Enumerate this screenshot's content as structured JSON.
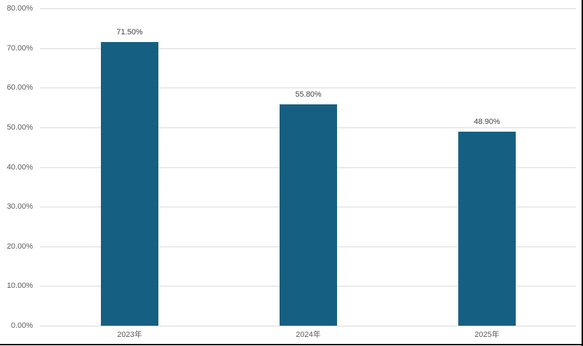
{
  "chart_data": {
    "type": "bar",
    "title": "",
    "xlabel": "",
    "ylabel": "",
    "categories": [
      "2023年",
      "2024年",
      "2025年"
    ],
    "values": [
      71.5,
      55.8,
      48.9
    ],
    "data_labels": [
      "71.50%",
      "55.80%",
      "48.90%"
    ],
    "y_ticks": [
      {
        "value": 80,
        "label": "80.00%"
      },
      {
        "value": 70,
        "label": "70.00%"
      },
      {
        "value": 60,
        "label": "60.00%"
      },
      {
        "value": 50,
        "label": "50.00%"
      },
      {
        "value": 40,
        "label": "40.00%"
      },
      {
        "value": 30,
        "label": "30.00%"
      },
      {
        "value": 20,
        "label": "20.00%"
      },
      {
        "value": 10,
        "label": "10.00%"
      },
      {
        "value": 0,
        "label": "0.00%"
      }
    ],
    "ylim": [
      0,
      80
    ],
    "grid": true,
    "legend": "none",
    "colors": {
      "bar": "#156082",
      "gridline": "#D9D9D9",
      "axis_label": "#595959",
      "data_label": "#404040",
      "frame_border": "#000000",
      "background": "#FFFFFF"
    }
  }
}
